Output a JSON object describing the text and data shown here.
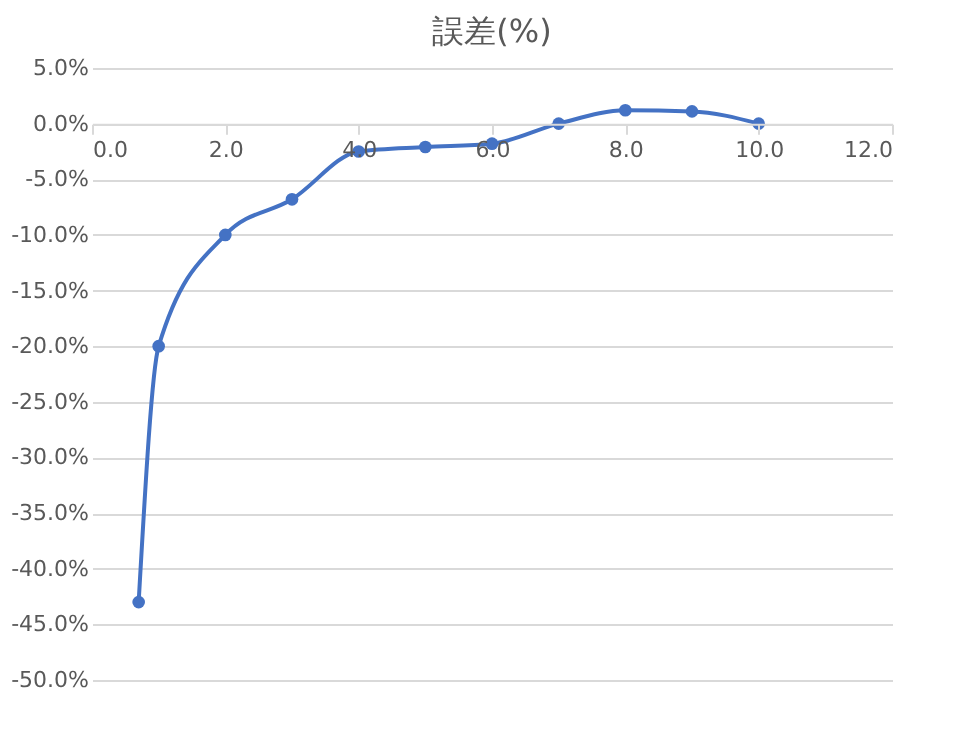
{
  "chart_data": {
    "type": "line",
    "title": "誤差(%)",
    "x": [
      0.7,
      1,
      2,
      3,
      4,
      5,
      6,
      7,
      8,
      9,
      10
    ],
    "series": [
      {
        "color": "#4472c4",
        "values": [
          -43,
          -20,
          -10,
          -6.8,
          -2.5,
          -2.1,
          -1.8,
          0,
          1.2,
          1.1,
          0
        ]
      }
    ],
    "xlim": [
      0,
      12
    ],
    "xticks": [
      {
        "value": 0,
        "label": "0.0"
      },
      {
        "value": 2,
        "label": "2.0"
      },
      {
        "value": 4,
        "label": "4.0"
      },
      {
        "value": 6,
        "label": "6.0"
      },
      {
        "value": 8,
        "label": "8.0"
      },
      {
        "value": 10,
        "label": "10.0"
      },
      {
        "value": 12,
        "label": "12.0"
      }
    ],
    "ylim": [
      -50,
      5
    ],
    "yticks": [
      {
        "value": 5,
        "label": "5.0%"
      },
      {
        "value": 0,
        "label": "0.0%"
      },
      {
        "value": -5,
        "label": "-5.0%"
      },
      {
        "value": -10,
        "label": "-10.0%"
      },
      {
        "value": -15,
        "label": "-15.0%"
      },
      {
        "value": -20,
        "label": "-20.0%"
      },
      {
        "value": -25,
        "label": "-25.0%"
      },
      {
        "value": -30,
        "label": "-30.0%"
      },
      {
        "value": -35,
        "label": "-35.0%"
      },
      {
        "value": -40,
        "label": "-40.0%"
      },
      {
        "value": -45,
        "label": "-45.0%"
      },
      {
        "value": -50,
        "label": "-50.0%"
      }
    ],
    "grid": "y",
    "marker": "circle",
    "line_style": "solid"
  }
}
